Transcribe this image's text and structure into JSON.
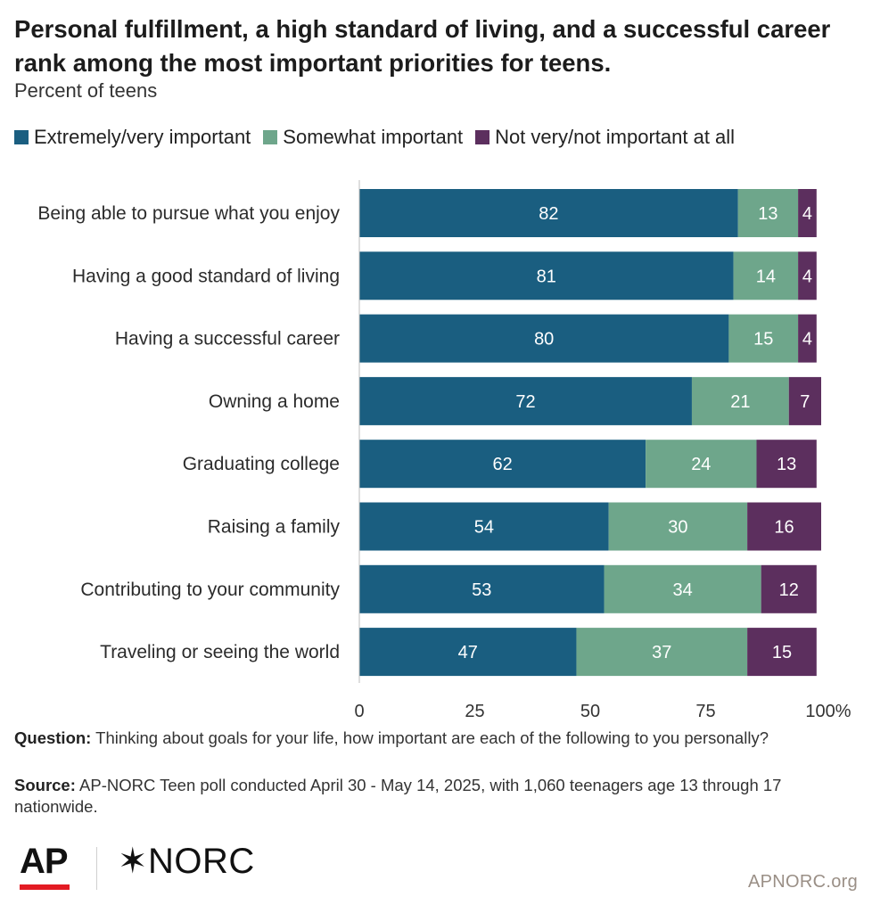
{
  "header": {
    "title": "Personal fulfillment, a high standard of living, and a successful career rank among the most important priorities for teens.",
    "subtitle": "Percent of teens"
  },
  "legend": [
    {
      "label": "Extremely/very important",
      "color": "#1a5e80"
    },
    {
      "label": "Somewhat important",
      "color": "#6ea68b"
    },
    {
      "label": "Not very/not important at all",
      "color": "#5c2f5e"
    }
  ],
  "chart_data": {
    "type": "bar",
    "orientation": "horizontal",
    "stacked": true,
    "categories": [
      "Being able to pursue what you enjoy",
      "Having a good standard of living",
      "Having a successful career",
      "Owning a home",
      "Graduating college",
      "Raising a family",
      "Contributing to your community",
      "Traveling or seeing the world"
    ],
    "series": [
      {
        "name": "Extremely/very important",
        "color": "#1a5e80",
        "values": [
          82,
          81,
          80,
          72,
          62,
          54,
          53,
          47
        ]
      },
      {
        "name": "Somewhat important",
        "color": "#6ea68b",
        "values": [
          13,
          14,
          15,
          21,
          24,
          30,
          34,
          37
        ]
      },
      {
        "name": "Not very/not important at all",
        "color": "#5c2f5e",
        "values": [
          4,
          4,
          4,
          7,
          13,
          16,
          12,
          15
        ]
      }
    ],
    "xlim": [
      0,
      100
    ],
    "xticks": [
      0,
      25,
      50,
      75,
      100
    ],
    "xtick_labels": [
      "0",
      "25",
      "50",
      "75",
      "100%"
    ],
    "grid": false,
    "legend_position": "top"
  },
  "notes": {
    "question_label": "Question:",
    "question_text": "Thinking about goals for your life, how important are each of the following to you personally?",
    "source_label": "Source:",
    "source_text": "AP-NORC Teen poll conducted April 30 - May 14, 2025, with 1,060 teenagers age 13 through 17 nationwide."
  },
  "footer": {
    "logo_ap": "AP",
    "logo_norc": "✶NORC",
    "site": "APNORC.org"
  }
}
